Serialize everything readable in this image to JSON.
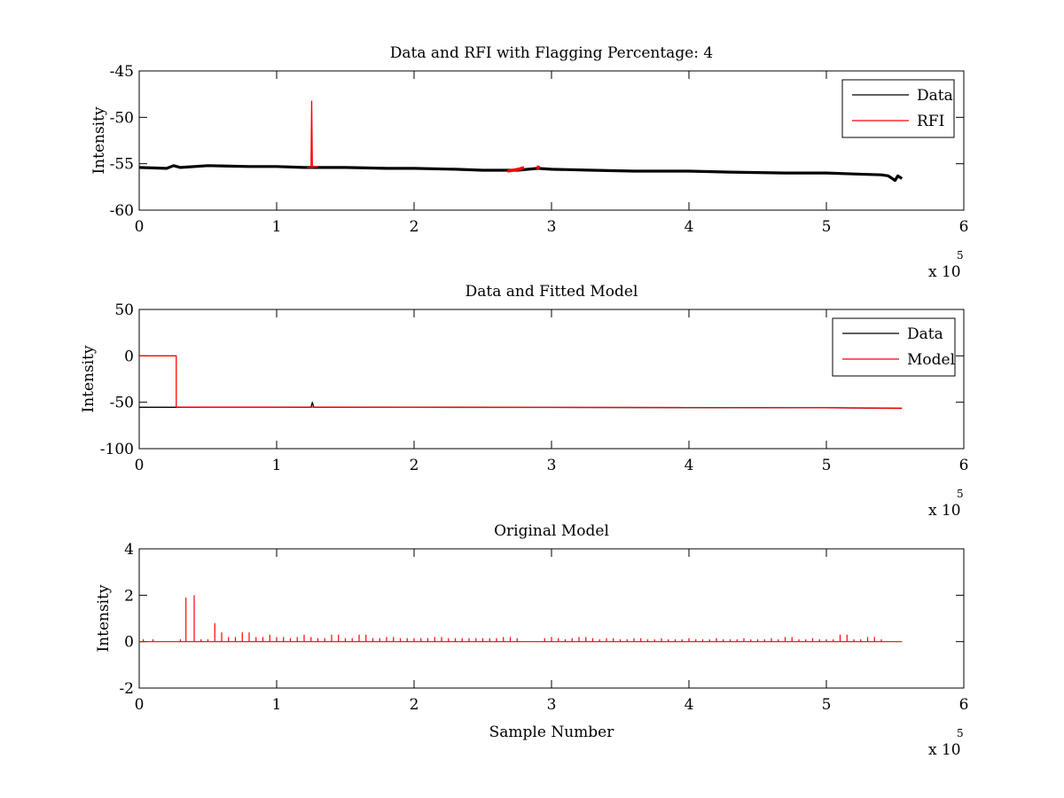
{
  "chart_data": [
    {
      "type": "line",
      "title": "Data and RFI with Flagging Percentage: 4",
      "ylabel": "Intensity",
      "xlabel": "",
      "x_exponent_label": "x 10",
      "x_exponent": "5",
      "xlim": [
        0,
        6
      ],
      "ylim": [
        -60,
        -45
      ],
      "xticks": [
        "0",
        "1",
        "2",
        "3",
        "4",
        "5",
        "6"
      ],
      "yticks": [
        "-60",
        "-55",
        "-50",
        "-45"
      ],
      "legend": [
        "Data",
        "RFI"
      ],
      "legend_position": "top-right",
      "series": [
        {
          "name": "Data",
          "color": "#000000",
          "x": [
            0,
            0.2,
            0.25,
            0.3,
            0.5,
            0.8,
            1.0,
            1.2,
            1.5,
            1.8,
            2.0,
            2.3,
            2.5,
            2.75,
            2.9,
            3.0,
            3.3,
            3.6,
            4.0,
            4.3,
            4.7,
            5.0,
            5.2,
            5.4,
            5.45,
            5.5,
            5.52,
            5.55
          ],
          "y": [
            -55.4,
            -55.5,
            -55.2,
            -55.4,
            -55.2,
            -55.3,
            -55.3,
            -55.4,
            -55.4,
            -55.5,
            -55.5,
            -55.6,
            -55.7,
            -55.7,
            -55.5,
            -55.6,
            -55.7,
            -55.8,
            -55.8,
            -55.9,
            -56.0,
            -56.0,
            -56.1,
            -56.2,
            -56.3,
            -56.8,
            -56.3,
            -56.6
          ]
        },
        {
          "name": "RFI",
          "color": "#ff0000",
          "segments": [
            {
              "x": [
                1.22,
                1.24,
                1.25,
                1.255,
                1.26,
                1.3
              ],
              "y": [
                -55.4,
                -55.4,
                -55.4,
                -48.2,
                -55.4,
                -55.3
              ]
            },
            {
              "x": [
                2.68,
                2.72,
                2.76,
                2.8
              ],
              "y": [
                -55.8,
                -55.7,
                -55.6,
                -55.4
              ]
            },
            {
              "x": [
                2.9,
                2.905
              ],
              "y": [
                -55.6,
                -55.2
              ]
            }
          ]
        }
      ]
    },
    {
      "type": "line",
      "title": "Data and Fitted Model",
      "ylabel": "Intensity",
      "xlabel": "",
      "x_exponent_label": "x 10",
      "x_exponent": "5",
      "xlim": [
        0,
        6
      ],
      "ylim": [
        -100,
        50
      ],
      "xticks": [
        "0",
        "1",
        "2",
        "3",
        "4",
        "5",
        "6"
      ],
      "yticks": [
        "-100",
        "-50",
        "0",
        "50"
      ],
      "legend": [
        "Data",
        "Model"
      ],
      "legend_position": "top-right",
      "series": [
        {
          "name": "Data",
          "color": "#000000",
          "x": [
            0,
            0.27,
            0.5,
            1.0,
            1.25,
            1.26,
            1.27,
            2.0,
            3.0,
            4.0,
            5.0,
            5.55
          ],
          "y": [
            -55.4,
            -55.4,
            -55.3,
            -55.3,
            -55.4,
            -50.0,
            -55.4,
            -55.5,
            -55.6,
            -55.8,
            -56.0,
            -56.6
          ]
        },
        {
          "name": "Model",
          "color": "#ff0000",
          "x": [
            0,
            0.27,
            0.27,
            1.0,
            2.0,
            3.0,
            4.0,
            5.0,
            5.55
          ],
          "y": [
            0,
            0,
            -55.2,
            -55.2,
            -55.4,
            -55.5,
            -55.7,
            -55.9,
            -56.3
          ]
        }
      ]
    },
    {
      "type": "line",
      "title": "Original Model",
      "ylabel": "Intensity",
      "xlabel": "Sample Number",
      "x_exponent_label": "x 10",
      "x_exponent": "5",
      "xlim": [
        0,
        6
      ],
      "ylim": [
        -2,
        4
      ],
      "xticks": [
        "0",
        "1",
        "2",
        "3",
        "4",
        "5",
        "6"
      ],
      "yticks": [
        "-2",
        "0",
        "2",
        "4"
      ],
      "baseline": 0,
      "series": [
        {
          "name": "Original Model",
          "color": "#ff0000",
          "range": [
            0,
            5.55
          ],
          "spikes_x": [
            0.03,
            0.1,
            0.3,
            0.34,
            0.4,
            0.45,
            0.5,
            0.55,
            0.6,
            0.65,
            0.7,
            0.75,
            0.8,
            0.85,
            0.9,
            0.95,
            1.0,
            1.05,
            1.1,
            1.15,
            1.2,
            1.25,
            1.3,
            1.35,
            1.4,
            1.45,
            1.5,
            1.55,
            1.6,
            1.65,
            1.7,
            1.75,
            1.8,
            1.85,
            1.9,
            1.95,
            2.0,
            2.05,
            2.1,
            2.15,
            2.2,
            2.25,
            2.3,
            2.35,
            2.4,
            2.45,
            2.5,
            2.55,
            2.6,
            2.65,
            2.7,
            2.75,
            2.95,
            3.0,
            3.05,
            3.1,
            3.15,
            3.2,
            3.25,
            3.3,
            3.35,
            3.4,
            3.45,
            3.5,
            3.55,
            3.6,
            3.65,
            3.7,
            3.75,
            3.8,
            3.85,
            3.9,
            3.95,
            4.0,
            4.05,
            4.1,
            4.15,
            4.2,
            4.25,
            4.3,
            4.35,
            4.4,
            4.45,
            4.5,
            4.55,
            4.6,
            4.65,
            4.7,
            4.75,
            4.8,
            4.85,
            4.9,
            4.95,
            5.0,
            5.05,
            5.1,
            5.15,
            5.2,
            5.25,
            5.3,
            5.35,
            5.4
          ],
          "spikes_y": [
            0.1,
            0.1,
            0.1,
            1.9,
            2.0,
            0.1,
            0.1,
            0.8,
            0.4,
            0.2,
            0.2,
            0.4,
            0.4,
            0.2,
            0.2,
            0.3,
            0.2,
            0.2,
            0.15,
            0.2,
            0.3,
            0.2,
            0.15,
            0.15,
            0.3,
            0.3,
            0.15,
            0.15,
            0.3,
            0.3,
            0.15,
            0.15,
            0.2,
            0.2,
            0.15,
            0.15,
            0.15,
            0.15,
            0.15,
            0.2,
            0.2,
            0.15,
            0.15,
            0.15,
            0.15,
            0.15,
            0.15,
            0.15,
            0.15,
            0.2,
            0.2,
            0.15,
            0.15,
            0.2,
            0.15,
            0.1,
            0.15,
            0.2,
            0.2,
            0.15,
            0.1,
            0.15,
            0.15,
            0.1,
            0.1,
            0.15,
            0.15,
            0.1,
            0.1,
            0.15,
            0.1,
            0.1,
            0.1,
            0.15,
            0.1,
            0.1,
            0.1,
            0.15,
            0.1,
            0.1,
            0.1,
            0.15,
            0.1,
            0.1,
            0.1,
            0.15,
            0.1,
            0.2,
            0.2,
            0.1,
            0.1,
            0.15,
            0.1,
            0.1,
            0.1,
            0.3,
            0.3,
            0.1,
            0.1,
            0.2,
            0.2,
            0.1
          ]
        }
      ]
    }
  ]
}
